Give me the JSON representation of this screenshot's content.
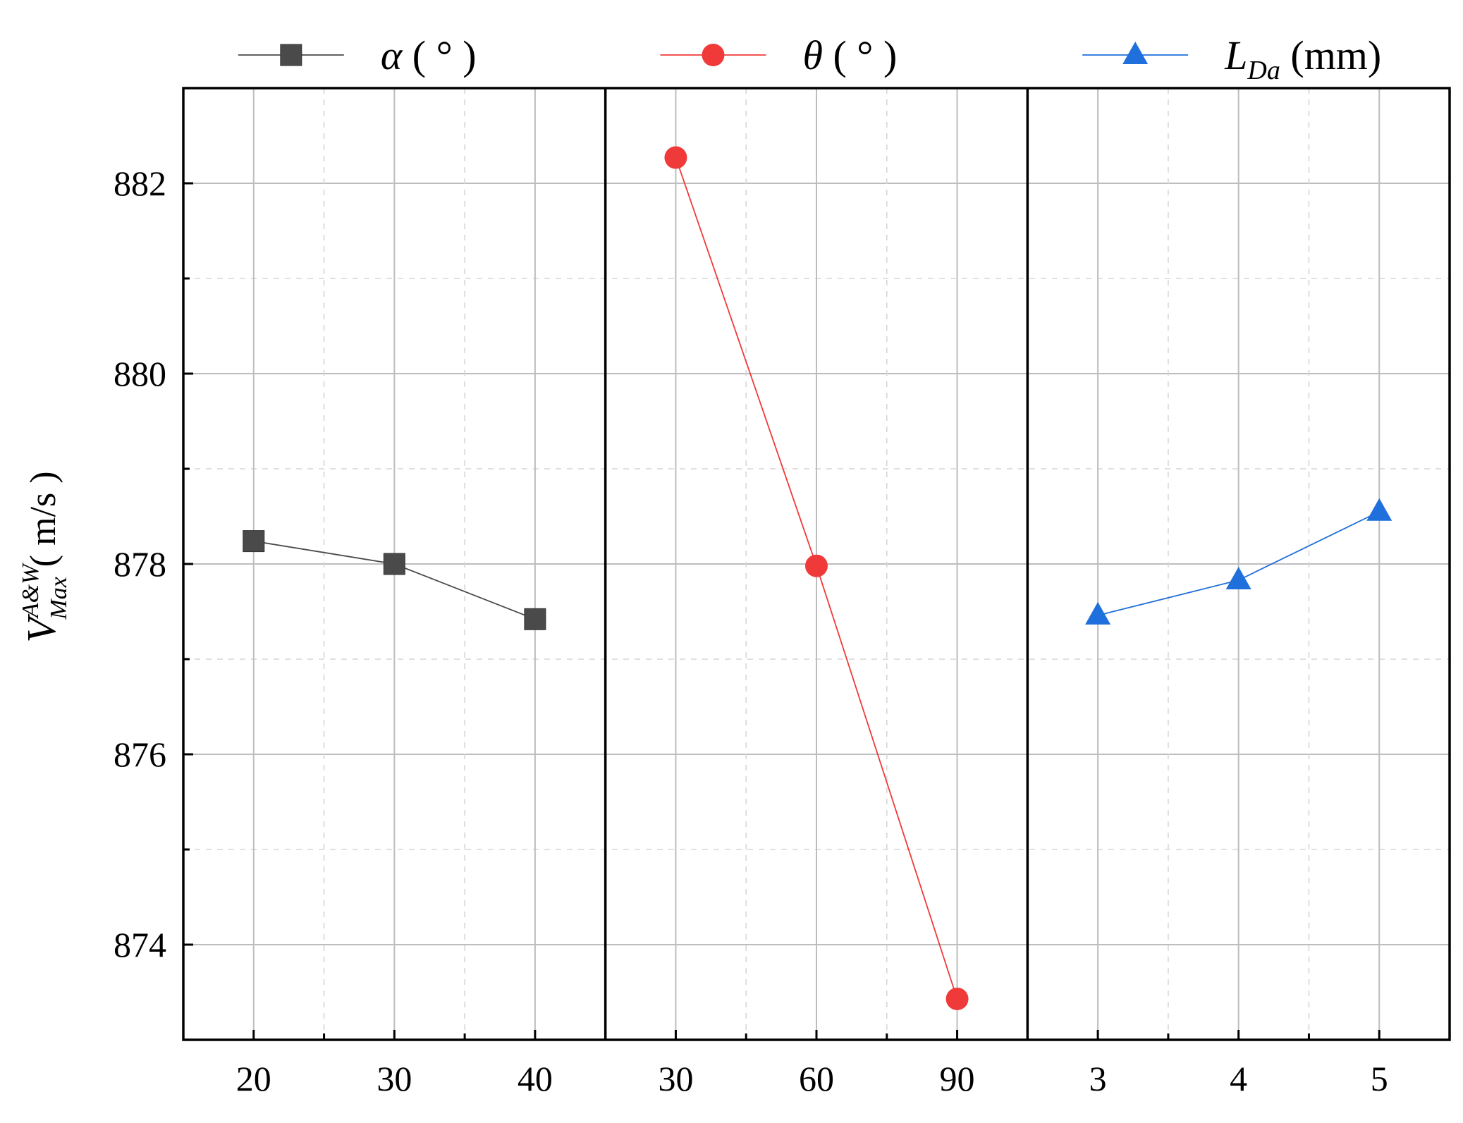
{
  "chart_data": {
    "type": "line",
    "layout": "three-panel main effects plot with shared y-axis",
    "ylabel": "V_Max^{A&W} ( m/s )",
    "ylabel_parts": {
      "main": "V",
      "super": "A&W",
      "sub": "Max",
      "unit": "( m/s )"
    },
    "ylim": [
      873,
      883
    ],
    "yticks": [
      874,
      876,
      878,
      880,
      882
    ],
    "ytick_labels": [
      "874",
      "876",
      "878",
      "880",
      "882"
    ],
    "grid": true,
    "legend_position": "top",
    "panels": [
      {
        "legend_label": "α ( ° )",
        "legend_symbol": "α",
        "legend_unit": "( ° )",
        "marker": "square",
        "color": "#4a4a4a",
        "x": [
          20,
          30,
          40
        ],
        "xtick_labels": [
          "20",
          "30",
          "40"
        ],
        "values": [
          878.24,
          878.0,
          877.42
        ]
      },
      {
        "legend_label": "θ ( ° )",
        "legend_symbol": "θ",
        "legend_unit": "( ° )",
        "marker": "circle",
        "color": "#f03a3a",
        "x": [
          30,
          60,
          90
        ],
        "xtick_labels": [
          "30",
          "60",
          "90"
        ],
        "values": [
          882.27,
          877.98,
          873.43
        ]
      },
      {
        "legend_label": "L_Da (mm)",
        "legend_symbol": "L",
        "legend_sub": "Da",
        "legend_unit": "(mm)",
        "marker": "triangle",
        "color": "#1f6fdc",
        "x": [
          3,
          4,
          5
        ],
        "xtick_labels": [
          "3",
          "4",
          "5"
        ],
        "values": [
          877.46,
          877.83,
          878.55
        ]
      }
    ]
  }
}
